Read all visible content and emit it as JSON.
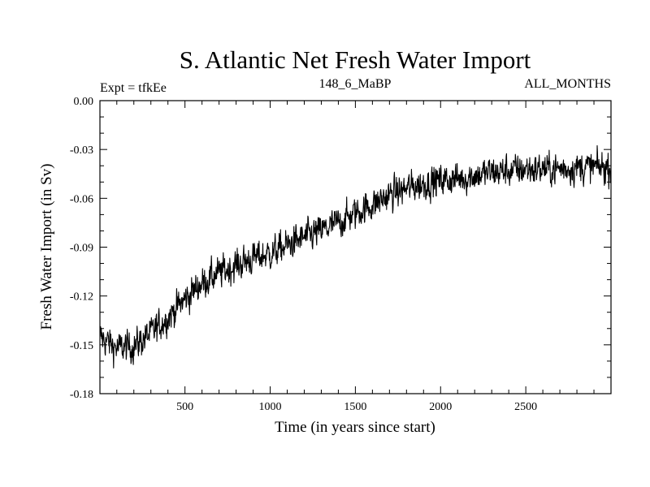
{
  "chart_data": {
    "type": "line",
    "title": "S. Atlantic Net Fresh Water Import",
    "subtitle_left": "Expt = tfkEe",
    "subtitle_center": "148_6_MaBP",
    "subtitle_right": "ALL_MONTHS",
    "xlabel": "Time (in years since start)",
    "ylabel": "Fresh Water Import (in Sv)",
    "xlim": [
      1,
      3000
    ],
    "ylim": [
      -0.18,
      0.0
    ],
    "xticks": [
      500,
      1000,
      1500,
      2000,
      2500
    ],
    "xtick_labels": [
      "500",
      "1000",
      "1500",
      "2000",
      "2500"
    ],
    "yticks": [
      0.0,
      -0.03,
      -0.06,
      -0.09,
      -0.12,
      -0.15,
      -0.18
    ],
    "ytick_labels": [
      "0.00",
      "-0.03",
      "-0.06",
      "-0.09",
      "-0.12",
      "-0.15",
      "-0.18"
    ],
    "grid": false,
    "legend": "none",
    "line_color": "#000000",
    "series": [
      {
        "x": [
          1,
          100,
          200,
          300,
          400,
          500,
          600,
          700,
          800,
          900,
          1000,
          1100,
          1200,
          1300,
          1400,
          1500,
          1600,
          1700,
          1800,
          1900,
          2000,
          2100,
          2200,
          2300,
          2400,
          2500,
          2600,
          2700,
          2800,
          2900,
          3000
        ],
        "values": [
          -0.145,
          -0.152,
          -0.151,
          -0.143,
          -0.133,
          -0.122,
          -0.112,
          -0.106,
          -0.101,
          -0.097,
          -0.094,
          -0.089,
          -0.084,
          -0.08,
          -0.075,
          -0.069,
          -0.064,
          -0.058,
          -0.054,
          -0.051,
          -0.049,
          -0.048,
          -0.046,
          -0.044,
          -0.043,
          -0.042,
          -0.042,
          -0.042,
          -0.041,
          -0.041,
          -0.041
        ],
        "noise_amplitude": 0.012
      }
    ]
  }
}
